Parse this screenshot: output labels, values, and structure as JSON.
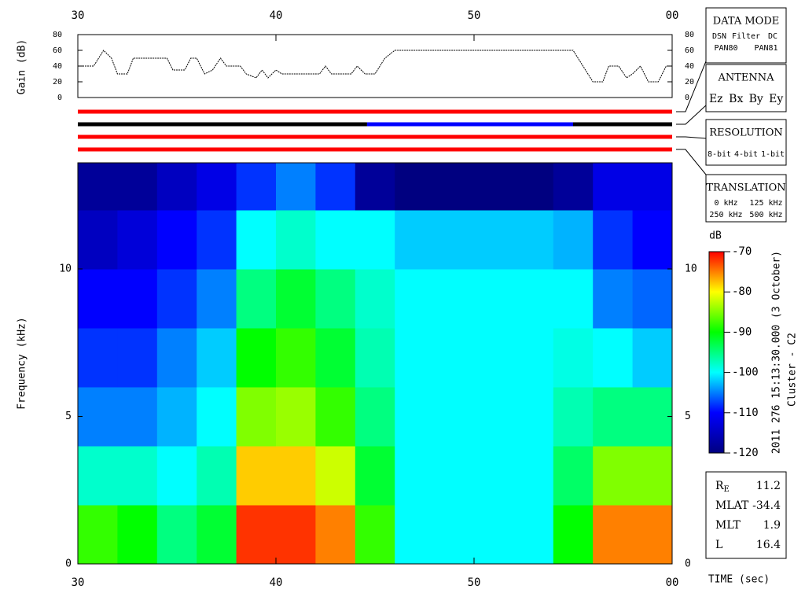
{
  "chart_data": [
    {
      "type": "line",
      "ylabel": "Gain (dB)",
      "color": "#000000",
      "xaxis_side": "top",
      "xlim": [
        30,
        60
      ],
      "ylim": [
        0,
        80
      ],
      "xticks": [
        30,
        40,
        50,
        {
          "value": 60,
          "label": "00"
        }
      ],
      "yticks": [
        0,
        20,
        40,
        60,
        80
      ],
      "x": [
        30,
        30.8,
        31.3,
        31.7,
        32,
        32.5,
        32.8,
        34.5,
        34.8,
        35.4,
        35.7,
        36,
        36.4,
        36.8,
        37.2,
        37.5,
        38.2,
        38.5,
        39,
        39.3,
        39.6,
        40,
        40.3,
        41,
        42.2,
        42.5,
        42.8,
        43.8,
        44.1,
        44.5,
        45,
        45.5,
        46,
        55,
        55.5,
        56,
        56.5,
        56.8,
        57.3,
        57.7,
        58,
        58.4,
        58.8,
        59.3,
        59.7,
        60
      ],
      "values": [
        40,
        40,
        60,
        50,
        30,
        30,
        50,
        50,
        35,
        35,
        50,
        50,
        30,
        35,
        50,
        40,
        40,
        30,
        25,
        35,
        25,
        35,
        30,
        30,
        30,
        40,
        30,
        30,
        40,
        30,
        30,
        50,
        60,
        60,
        40,
        20,
        20,
        40,
        40,
        25,
        30,
        40,
        20,
        20,
        40,
        40
      ]
    },
    {
      "type": "heatmap",
      "ylabel": "Frequency (kHz)",
      "xlabel": "TIME (sec)",
      "xaxis_side": "bottom",
      "xlim": [
        30,
        60
      ],
      "ylim": [
        0,
        13.6
      ],
      "xticks": [
        30,
        40,
        50,
        {
          "value": 60,
          "label": "00"
        }
      ],
      "yticks": [
        0,
        5,
        10
      ],
      "xbins": [
        30,
        32,
        34,
        36,
        38,
        40,
        42,
        44,
        46,
        48,
        50,
        52,
        54,
        56,
        58,
        60
      ],
      "ybins": [
        0,
        2,
        4,
        6,
        8,
        10,
        12,
        13.6
      ],
      "values": [
        [
          -88,
          -90,
          -95,
          -92,
          -72,
          -72,
          -75,
          -88,
          -100,
          -100,
          -100,
          -100,
          -90,
          -75,
          -75
        ],
        [
          -98,
          -98,
          -100,
          -97,
          -78,
          -78,
          -82,
          -92,
          -100,
          -100,
          -100,
          -100,
          -94,
          -85,
          -85
        ],
        [
          -105,
          -105,
          -103,
          -100,
          -85,
          -84,
          -88,
          -95,
          -100,
          -100,
          -100,
          -100,
          -97,
          -95,
          -95
        ],
        [
          -108,
          -108,
          -105,
          -102,
          -90,
          -88,
          -92,
          -97,
          -100,
          -100,
          -100,
          -100,
          -99,
          -100,
          -102
        ],
        [
          -110,
          -110,
          -108,
          -105,
          -95,
          -92,
          -95,
          -98,
          -100,
          -100,
          -100,
          -100,
          -100,
          -105,
          -106
        ],
        [
          -115,
          -113,
          -110,
          -108,
          -100,
          -98,
          -100,
          -100,
          -102,
          -102,
          -102,
          -102,
          -103,
          -108,
          -110
        ],
        [
          -118,
          -118,
          -115,
          -112,
          -108,
          -105,
          -108,
          -118,
          -120,
          -120,
          -120,
          -120,
          -118,
          -112,
          -112
        ]
      ],
      "colormap": [
        "#000080",
        "#0000ff",
        "#00ffff",
        "#00ff00",
        "#ffff00",
        "#ff0000"
      ],
      "colorbar": {
        "label": "dB",
        "lim": [
          -120,
          -70
        ],
        "ticks": [
          -70,
          -80,
          -90,
          -100,
          -110,
          -120
        ]
      },
      "annotations": [
        "2011 276 15:13:30.000 (3 October)",
        "Cluster - C2"
      ]
    }
  ],
  "status_bars": [
    {
      "segments": [
        {
          "start": 30,
          "end": 60,
          "color": "#ff0000"
        }
      ]
    },
    {
      "segments": [
        {
          "start": 30,
          "end": 44.6,
          "color": "#000000"
        },
        {
          "start": 44.6,
          "end": 55.0,
          "color": "#0000ff"
        },
        {
          "start": 55.0,
          "end": 60,
          "color": "#000000"
        }
      ]
    },
    {
      "segments": [
        {
          "start": 30,
          "end": 60,
          "color": "#ff0000"
        }
      ]
    },
    {
      "segments": [
        {
          "start": 30,
          "end": 60,
          "color": "#ff0000"
        }
      ]
    }
  ],
  "legend_boxes": [
    {
      "title": "DATA MODE",
      "rows": [
        [
          {
            "text": "DSN",
            "color": "#ff0000"
          },
          {
            "text": "Filter",
            "color": "#00c000"
          },
          {
            "text": "DC",
            "color": "#0000ff"
          }
        ],
        [
          {
            "text": "PAN80",
            "color": "#000000"
          },
          {
            "text": "PAN81",
            "color": "#00c8c8"
          }
        ]
      ]
    },
    {
      "title": "ANTENNA",
      "rows": [
        [
          {
            "text": "Ez",
            "color": "#ff0000"
          },
          {
            "text": "Bx",
            "color": "#00c000"
          },
          {
            "text": "By",
            "color": "#0000ff"
          },
          {
            "text": "Ey",
            "color": "#000000"
          }
        ]
      ]
    },
    {
      "title": "RESOLUTION",
      "rows": [
        [
          {
            "text": "8-bit",
            "color": "#ff0000"
          },
          {
            "text": "4-bit",
            "color": "#00c000"
          },
          {
            "text": "1-bit",
            "color": "#0000ff"
          }
        ]
      ]
    },
    {
      "title": "TRANSLATION",
      "rows": [
        [
          {
            "text": "0 kHz",
            "color": "#ff0000"
          },
          {
            "text": "125 kHz",
            "color": "#00c000"
          }
        ],
        [
          {
            "text": "250 kHz",
            "color": "#0000ff"
          },
          {
            "text": "500 kHz",
            "color": "#000000"
          }
        ]
      ]
    }
  ],
  "ephemeris": [
    {
      "label": "R",
      "sub": "E",
      "value": "11.2"
    },
    {
      "label": "MLAT",
      "value": "-34.4"
    },
    {
      "label": "MLT",
      "value": "1.9"
    },
    {
      "label": "L",
      "value": "16.4"
    }
  ]
}
